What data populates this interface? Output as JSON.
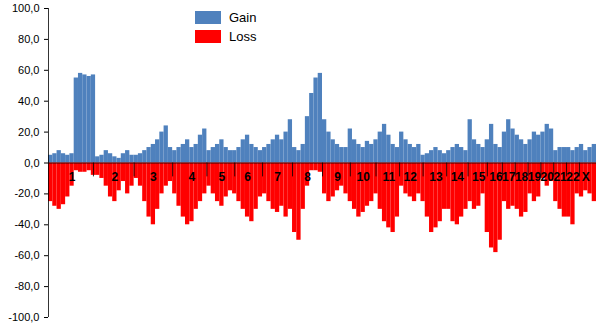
{
  "chart_data": {
    "type": "bar",
    "categories": [
      null,
      null,
      null,
      null,
      null,
      "1",
      null,
      null,
      null,
      null,
      null,
      null,
      null,
      null,
      null,
      "2",
      null,
      null,
      null,
      null,
      null,
      null,
      null,
      null,
      "3",
      null,
      null,
      null,
      null,
      null,
      null,
      null,
      null,
      "4",
      null,
      null,
      null,
      null,
      null,
      null,
      "5",
      null,
      null,
      null,
      null,
      null,
      "6",
      null,
      null,
      null,
      null,
      null,
      null,
      "7",
      null,
      null,
      null,
      null,
      null,
      null,
      "8",
      null,
      null,
      null,
      null,
      null,
      null,
      "9",
      null,
      null,
      null,
      null,
      null,
      "10",
      null,
      null,
      null,
      null,
      null,
      "11",
      null,
      null,
      null,
      null,
      "12",
      null,
      null,
      null,
      null,
      null,
      "13",
      null,
      null,
      null,
      null,
      "14",
      null,
      null,
      null,
      null,
      "15",
      null,
      null,
      null,
      "16",
      null,
      null,
      "17",
      null,
      null,
      "18",
      null,
      null,
      "19",
      null,
      null,
      "20",
      null,
      null,
      "21",
      null,
      null,
      "22",
      null,
      null,
      "X",
      null,
      null
    ],
    "series": [
      {
        "name": "Gain",
        "color": "#4f81bd",
        "values": [
          5,
          6,
          8,
          6,
          5,
          6,
          55,
          58,
          57,
          56,
          57,
          4,
          5,
          8,
          6,
          4,
          3,
          6,
          8,
          5,
          5,
          6,
          8,
          10,
          12,
          15,
          20,
          24,
          10,
          8,
          10,
          12,
          15,
          10,
          12,
          18,
          22,
          8,
          10,
          12,
          15,
          10,
          8,
          8,
          10,
          15,
          18,
          12,
          10,
          8,
          10,
          12,
          15,
          18,
          15,
          20,
          28,
          10,
          8,
          12,
          30,
          45,
          55,
          58,
          28,
          20,
          15,
          12,
          10,
          10,
          22,
          15,
          12,
          10,
          14,
          12,
          15,
          20,
          25,
          18,
          12,
          10,
          20,
          15,
          12,
          10,
          12,
          5,
          6,
          8,
          10,
          8,
          6,
          8,
          10,
          12,
          10,
          8,
          28,
          15,
          12,
          10,
          15,
          25,
          12,
          10,
          20,
          28,
          22,
          18,
          15,
          12,
          15,
          20,
          18,
          20,
          25,
          22,
          8,
          10,
          10,
          10,
          8,
          10,
          12,
          8,
          10,
          12
        ]
      },
      {
        "name": "Loss",
        "color": "#ff0000",
        "values": [
          -25,
          -28,
          -30,
          -27,
          -22,
          -15,
          -5,
          -6,
          -6,
          -5,
          -8,
          -8,
          -10,
          -15,
          -22,
          -25,
          -18,
          -12,
          -20,
          -15,
          -10,
          -15,
          -25,
          -35,
          -40,
          -30,
          -20,
          -15,
          -12,
          -20,
          -28,
          -35,
          -40,
          -38,
          -30,
          -25,
          -20,
          -15,
          -20,
          -25,
          -28,
          -22,
          -18,
          -20,
          -25,
          -30,
          -35,
          -38,
          -30,
          -22,
          -20,
          -25,
          -30,
          -32,
          -28,
          -35,
          -30,
          -45,
          -50,
          -30,
          -15,
          -5,
          -5,
          -6,
          -20,
          -25,
          -22,
          -18,
          -15,
          -20,
          -25,
          -30,
          -35,
          -32,
          -28,
          -25,
          -20,
          -30,
          -38,
          -42,
          -45,
          -35,
          -15,
          -20,
          -22,
          -25,
          -20,
          -25,
          -35,
          -45,
          -42,
          -38,
          -30,
          -30,
          -38,
          -40,
          -35,
          -30,
          -25,
          -30,
          -28,
          -20,
          -45,
          -55,
          -58,
          -50,
          -25,
          -30,
          -28,
          -30,
          -35,
          -32,
          -20,
          -25,
          -22,
          -10,
          -15,
          -12,
          -25,
          -30,
          -35,
          -35,
          -40,
          -20,
          -22,
          -18,
          -20,
          -25
        ]
      }
    ],
    "ylim": [
      -100,
      100
    ],
    "yticks": [
      {
        "value": -100,
        "label": "-100,0"
      },
      {
        "value": -80,
        "label": "-80,0"
      },
      {
        "value": -60,
        "label": "-60,0"
      },
      {
        "value": -40,
        "label": "-40,0"
      },
      {
        "value": -20,
        "label": "-20,0"
      },
      {
        "value": 0,
        "label": "0,0"
      },
      {
        "value": 20,
        "label": "20,0"
      },
      {
        "value": 40,
        "label": "40,0"
      },
      {
        "value": 60,
        "label": "60,0"
      },
      {
        "value": 80,
        "label": "80,0"
      },
      {
        "value": 100,
        "label": "100,0"
      }
    ],
    "grid": false,
    "legend": "top"
  }
}
